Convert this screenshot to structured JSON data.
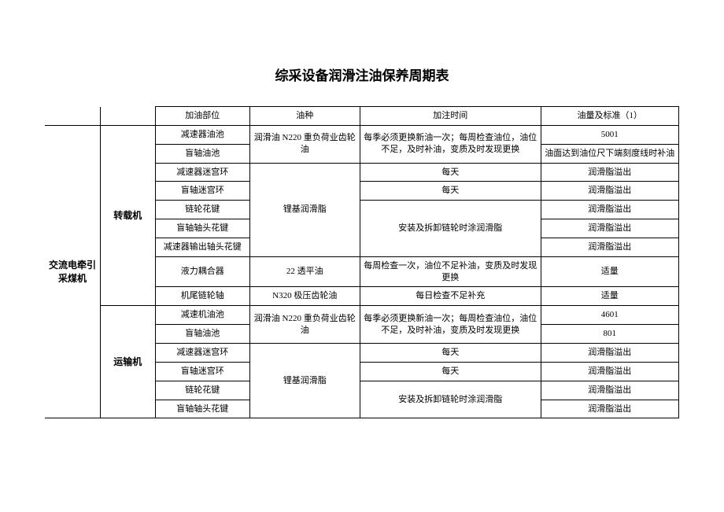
{
  "title": "综采设备润滑注油保养周期表",
  "headers": {
    "c2": "加油部位",
    "c3": "油种",
    "c4": "加注时间",
    "c5": "油量及标准（1）"
  },
  "cat0": "交流电牵引采煤机",
  "group1": "转载机",
  "group2": "运输机",
  "rows": {
    "r1": {
      "part": "减速器油池",
      "oil": "润滑油 N220 重负荷业齿轮油",
      "time": "每季必须更换新油一次；每周检查油位，油位不足，及时补油，变质及时发现更换",
      "std": "5001"
    },
    "r2": {
      "part": "盲轴油池",
      "std": "油面达到油位尺下端刻度线时补油"
    },
    "r3": {
      "part": "减速器迷宫环",
      "oil": "锂基润滑脂",
      "time": "每天",
      "std": "润滑脂溢出"
    },
    "r4": {
      "part": "盲轴迷宫环",
      "time": "每天",
      "std": "润滑脂溢出"
    },
    "r5": {
      "part": "链轮花键",
      "time_merge": "安装及拆卸链轮时涂润滑脂",
      "std": "润滑脂溢出"
    },
    "r6": {
      "part": "盲轴轴头花键",
      "std": "润滑脂溢出"
    },
    "r7": {
      "part": "减速器输出轴头花键",
      "std": "润滑脂溢出"
    },
    "r8": {
      "part": "液力耦合器",
      "oil": "22 透平油",
      "time": "每周检查一次，油位不足补油，变质及时发现更换",
      "std": "适量"
    },
    "r9": {
      "part": "机尾链轮轴",
      "oil": "N320 极压齿轮油",
      "time": "每日检查不足补充",
      "std": "适量"
    },
    "r10": {
      "part": "减速机油池",
      "oil": "润滑油 N220 重负荷业齿轮油",
      "time": "每季必须更换新油一次；每周检查油位，油位不足，及时补油，变质及时发现更换",
      "std": "4601"
    },
    "r11": {
      "part": "盲轴油池",
      "std": "801"
    },
    "r12": {
      "part": "减速器迷宫环",
      "oil": "锂基润滑脂",
      "time": "每天",
      "std": "润滑脂溢出"
    },
    "r13": {
      "part": "盲轴迷宫环",
      "time": "每天",
      "std": "润滑脂溢出"
    },
    "r14": {
      "part": "链轮花键",
      "time_merge": "安装及拆卸链轮时涂润滑脂",
      "std": "润滑脂溢出"
    },
    "r15": {
      "part": "盲轴轴头花键",
      "std": "润滑脂溢出"
    }
  }
}
